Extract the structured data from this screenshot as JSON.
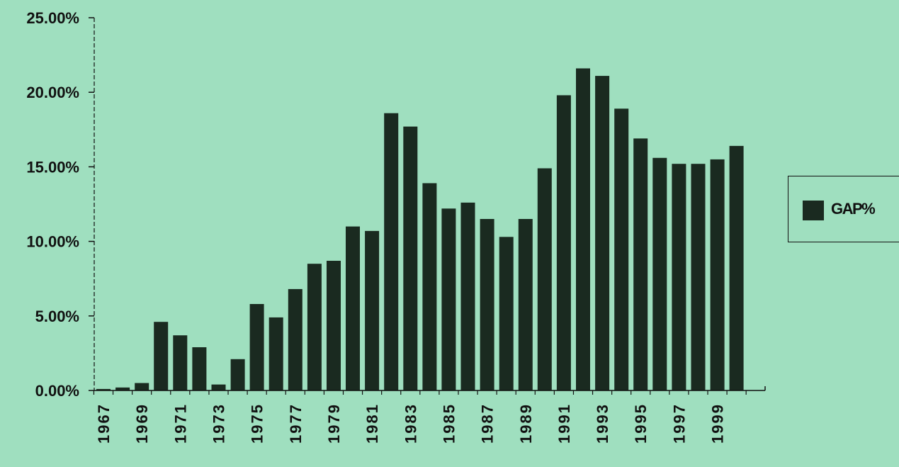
{
  "colors": {
    "background": "#9fdfbf",
    "bar": "#1a2a20",
    "axis": "#111111"
  },
  "legend": {
    "label": "GAP%",
    "placement": "right"
  },
  "chart_data": {
    "type": "bar",
    "categories": [
      "1967",
      "1968",
      "1969",
      "1970",
      "1971",
      "1972",
      "1973",
      "1974",
      "1975",
      "1976",
      "1977",
      "1978",
      "1979",
      "1980",
      "1981",
      "1982",
      "1983",
      "1984",
      "1985",
      "1986",
      "1987",
      "1988",
      "1989",
      "1990",
      "1991",
      "1992",
      "1993",
      "1994",
      "1995",
      "1996",
      "1997",
      "1998",
      "1999",
      "2000"
    ],
    "tick_labels": [
      "1967",
      "1969",
      "1971",
      "1973",
      "1975",
      "1977",
      "1979",
      "1981",
      "1983",
      "1985",
      "1987",
      "1989",
      "1991",
      "1993",
      "1995",
      "1997",
      "1999"
    ],
    "series": [
      {
        "name": "GAP%",
        "values": [
          0.1,
          0.2,
          0.5,
          4.6,
          3.7,
          2.9,
          0.4,
          2.1,
          5.8,
          4.9,
          6.8,
          8.5,
          8.7,
          11.0,
          10.7,
          18.6,
          17.7,
          13.9,
          12.2,
          12.6,
          11.5,
          10.3,
          11.5,
          14.9,
          19.8,
          21.6,
          21.1,
          18.9,
          16.9,
          15.6,
          15.2,
          15.2,
          15.5,
          16.4
        ]
      }
    ],
    "y_tick_labels": [
      "0.00%",
      "5.00%",
      "10.00%",
      "15.00%",
      "20.00%",
      "25.00%"
    ],
    "ylim": [
      0,
      25
    ],
    "title": "",
    "xlabel": "",
    "ylabel": "",
    "grid": false
  }
}
